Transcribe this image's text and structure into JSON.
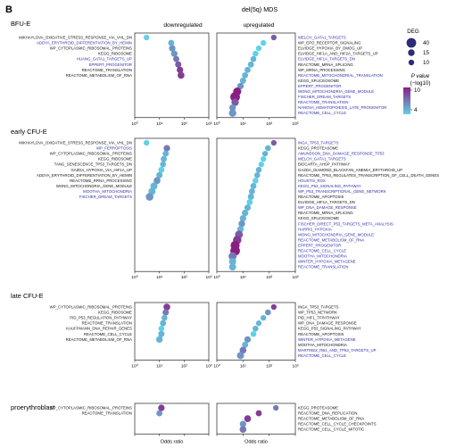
{
  "panel_letter": "B",
  "figure_title": "del(5q) MDS",
  "column_headers": {
    "down": "downregulated",
    "up": "upregulated"
  },
  "xlabel": "Odds ratio",
  "legend": {
    "size_title": "DEG",
    "size_values": [
      40,
      15,
      10
    ],
    "color_title": "P value",
    "color_subtitle": "(−log10)",
    "color_ticks": [
      10,
      4
    ],
    "color_low": "#5fd2e6",
    "color_high": "#8a1f83"
  },
  "colors": {
    "black_label": "#111111",
    "blue_label": "#2e2ea8"
  },
  "chart_data": {
    "type": "scatter",
    "xscale": "log",
    "xlim": [
      1,
      1000
    ],
    "xticks": [
      "10⁰",
      "10¹",
      "10²",
      "10³"
    ],
    "groups": [
      {
        "name": "BFU-E",
        "down": {
          "terms": [
            {
              "label": "MIKHAYLOVA_OXIDATIVE_STRESS_RESPONSE_VIA_VHL_DN",
              "blue": false,
              "or": 3,
              "deg": 10,
              "p": 4
            },
            {
              "label": "ADDYA_ERYTHROID_DIFFERENTIATION_BY_HEMIN",
              "blue": true,
              "or": 30,
              "deg": 12,
              "p": 5
            },
            {
              "label": "WP_CYTOPLASMIC_RIBOSOMAL_PROTEINS",
              "blue": false,
              "or": 33,
              "deg": 14,
              "p": 6
            },
            {
              "label": "KEGG_RIBOSOME",
              "blue": false,
              "or": 40,
              "deg": 14,
              "p": 6
            },
            {
              "label": "HUANG_GATA1_TARGETS_UP",
              "blue": true,
              "or": 48,
              "deg": 12,
              "p": 7
            },
            {
              "label": "EPPERT_PROGENITOR",
              "blue": true,
              "or": 58,
              "deg": 13,
              "p": 8
            },
            {
              "label": "REACTOME_TRANSLATION",
              "blue": false,
              "or": 68,
              "deg": 14,
              "p": 9
            },
            {
              "label": "REACTOME_METABOLISM_OF_RNA",
              "blue": false,
              "or": 75,
              "deg": 16,
              "p": 9
            }
          ]
        },
        "up": {
          "terms": [
            {
              "label": "WELCH_GATA1_TARGETS",
              "blue": true,
              "or": 150,
              "deg": 10,
              "p": 8
            },
            {
              "label": "WP_EPO_RECEPTOR_SIGNALING",
              "blue": false,
              "or": 60,
              "deg": 10,
              "p": 4
            },
            {
              "label": "ELVIDGE_HYPOXIA_BY_DMOG_UP",
              "blue": false,
              "or": 40,
              "deg": 10,
              "p": 4
            },
            {
              "label": "ELVIDGE_HIF1A_AND_HIF2A_TARGETS_UP",
              "blue": false,
              "or": 30,
              "deg": 11,
              "p": 4
            },
            {
              "label": "ELVIDGE_HIF1A_TARGETS_DN",
              "blue": true,
              "or": 25,
              "deg": 11,
              "p": 5
            },
            {
              "label": "REACTOME_MRNA_SPLICING",
              "blue": false,
              "or": 20,
              "deg": 12,
              "p": 5
            },
            {
              "label": "WP_MRNA_PROCESSING",
              "blue": false,
              "or": 15,
              "deg": 12,
              "p": 5
            },
            {
              "label": "REACTOME_MITOCHONDRIAL_TRANSLATION",
              "blue": true,
              "or": 12,
              "deg": 12,
              "p": 5
            },
            {
              "label": "KEGG_SPLICEOSOME",
              "blue": false,
              "or": 10,
              "deg": 13,
              "p": 5
            },
            {
              "label": "EPPERT_PROGENITOR",
              "blue": true,
              "or": 8,
              "deg": 14,
              "p": 6
            },
            {
              "label": "WONG_MITOCHONDRIA_GENE_MODULE",
              "blue": true,
              "or": 6,
              "deg": 25,
              "p": 10
            },
            {
              "label": "FISCHER_DREAM_TARGETS",
              "blue": true,
              "or": 5,
              "deg": 40,
              "p": 10
            },
            {
              "label": "REACTOME_TRANSLATION",
              "blue": true,
              "or": 5,
              "deg": 20,
              "p": 8
            },
            {
              "label": "NANOVA_HEMATOPOIESIS_LATE_PROGENITOR",
              "blue": true,
              "or": 4,
              "deg": 15,
              "p": 6
            },
            {
              "label": "REACTOME_CELL_CYCLE",
              "blue": true,
              "or": 4,
              "deg": 20,
              "p": 6
            }
          ]
        }
      },
      {
        "name": "early CFU-E",
        "down": {
          "terms": [
            {
              "label": "MIKHAYLOVA_OXIDATIVE_STRESS_RESPONSE_VIA_VHL_DN",
              "blue": false,
              "or": 3,
              "deg": 10,
              "p": 4
            },
            {
              "label": "WP_FERROPTOSIS",
              "blue": true,
              "or": 20,
              "deg": 14,
              "p": 7
            },
            {
              "label": "WP_CYTOPLASMIC_RIBOSOMAL_PROTEINS",
              "blue": false,
              "or": 18,
              "deg": 12,
              "p": 5
            },
            {
              "label": "KEGG_RIBOSOME",
              "blue": false,
              "or": 15,
              "deg": 12,
              "p": 5
            },
            {
              "label": "TANG_SENESCENCE_TP53_TARGETS_DN",
              "blue": false,
              "or": 14,
              "deg": 11,
              "p": 5
            },
            {
              "label": "GAZDA_HYPOXIA_VIA_HIF1A_UP",
              "blue": false,
              "or": 12,
              "deg": 12,
              "p": 4
            },
            {
              "label": "ADDYA_ERYTHROID_DIFFERENTIATION_BY_HEMIN",
              "blue": false,
              "or": 10,
              "deg": 13,
              "p": 5
            },
            {
              "label": "REACTOME_RRNA_PROCESSING",
              "blue": false,
              "or": 8,
              "deg": 16,
              "p": 6
            },
            {
              "label": "WONG_MITOCHONDRIA_GENE_MODULE",
              "blue": false,
              "or": 6,
              "deg": 18,
              "p": 5
            },
            {
              "label": "MOOTHA_MITOCHONDRIA",
              "blue": true,
              "or": 5,
              "deg": 18,
              "p": 5
            },
            {
              "label": "FISCHER_DREAM_TARGETS",
              "blue": true,
              "or": 4,
              "deg": 22,
              "p": 6
            }
          ]
        },
        "up": {
          "terms": [
            {
              "label": "INGA_TP53_TARGETS",
              "blue": true,
              "or": 150,
              "deg": 10,
              "p": 8
            },
            {
              "label": "KEGG_PROTEASOME",
              "blue": false,
              "or": 90,
              "deg": 11,
              "p": 5
            },
            {
              "label": "AMUNDSON_DNA_DAMAGE_RESPONSE_TP53",
              "blue": true,
              "or": 70,
              "deg": 10,
              "p": 5
            },
            {
              "label": "WELCH_GATA1_TARGETS",
              "blue": true,
              "or": 60,
              "deg": 10,
              "p": 4
            },
            {
              "label": "BIOCARTA_AHSP_PATHWAY",
              "blue": false,
              "or": 50,
              "deg": 10,
              "p": 4
            },
            {
              "label": "GAZDA_DIAMOND_BLACKFAN_ANEMIA_ERYTHROID_UP",
              "blue": false,
              "or": 40,
              "deg": 11,
              "p": 5
            },
            {
              "label": "REACTOME_TP53_REGULATES_TRANSCRIPTION_OF_CELL_DEATH_GENES",
              "blue": false,
              "or": 35,
              "deg": 11,
              "p": 5
            },
            {
              "label": "HOUSTIS_ROS",
              "blue": true,
              "or": 30,
              "deg": 11,
              "p": 4
            },
            {
              "label": "KEGG_P53_SIGNALING_PATHWAY",
              "blue": true,
              "or": 25,
              "deg": 12,
              "p": 5
            },
            {
              "label": "WP_P53_TRANSCRIPTIONAL_GENE_NETWORK",
              "blue": true,
              "or": 22,
              "deg": 12,
              "p": 5
            },
            {
              "label": "REACTOME_APOPTOSIS",
              "blue": false,
              "or": 20,
              "deg": 13,
              "p": 5
            },
            {
              "label": "ELVIDGE_HIF1A_TARGETS_DN",
              "blue": false,
              "or": 18,
              "deg": 12,
              "p": 4
            },
            {
              "label": "WP_DNA_DAMAGE_RESPONSE",
              "blue": true,
              "or": 15,
              "deg": 13,
              "p": 5
            },
            {
              "label": "REACTOME_MRNA_SPLICING",
              "blue": false,
              "or": 12,
              "deg": 14,
              "p": 5
            },
            {
              "label": "KEGG_SPLICEOSOME",
              "blue": false,
              "or": 10,
              "deg": 14,
              "p": 5
            },
            {
              "label": "FISCHER_DIRECT_P53_TARGETS_META_ANALYSIS",
              "blue": true,
              "or": 9,
              "deg": 15,
              "p": 6
            },
            {
              "label": "HARRIS_HYPOXIA",
              "blue": true,
              "or": 8,
              "deg": 14,
              "p": 5
            },
            {
              "label": "WONG_MITOCHONDRIA_GENE_MODULE",
              "blue": true,
              "or": 7,
              "deg": 24,
              "p": 8
            },
            {
              "label": "REACTOME_METABOLISM_OF_RNA",
              "blue": true,
              "or": 6,
              "deg": 28,
              "p": 9
            },
            {
              "label": "EPPERT_PROGENITOR",
              "blue": true,
              "or": 5,
              "deg": 34,
              "p": 10
            },
            {
              "label": "REACTOME_CELL_CYCLE",
              "blue": true,
              "or": 5,
              "deg": 40,
              "p": 10
            },
            {
              "label": "MOOTHA_MITOCHONDRIA",
              "blue": true,
              "or": 4,
              "deg": 24,
              "p": 7
            },
            {
              "label": "WINTER_HYPOXIA_METAGENE",
              "blue": true,
              "or": 4,
              "deg": 18,
              "p": 5
            },
            {
              "label": "REACTOME_TRANSLATION",
              "blue": true,
              "or": 4,
              "deg": 18,
              "p": 5
            }
          ]
        }
      },
      {
        "name": "late CFU-E",
        "down": {
          "terms": [
            {
              "label": "WP_CYTOPLASMIC_RIBOSOMAL_PROTEINS",
              "blue": false,
              "or": 20,
              "deg": 16,
              "p": 9
            },
            {
              "label": "KEGG_RIBOSOME",
              "blue": false,
              "or": 18,
              "deg": 13,
              "p": 7
            },
            {
              "label": "PID_P53_REGULATION_PATHWAY",
              "blue": false,
              "or": 16,
              "deg": 11,
              "p": 5
            },
            {
              "label": "REACTOME_TRANSLATION",
              "blue": false,
              "or": 14,
              "deg": 12,
              "p": 5
            },
            {
              "label": "KAUFFMANN_DNA_REPAIR_GENES",
              "blue": false,
              "or": 12,
              "deg": 11,
              "p": 4
            },
            {
              "label": "REACTOME_CELL_CYCLE",
              "blue": false,
              "or": 12,
              "deg": 13,
              "p": 5
            },
            {
              "label": "REACTOME_METABOLISM_OF_RNA",
              "blue": false,
              "or": 10,
              "deg": 15,
              "p": 5
            }
          ]
        },
        "up": {
          "terms": [
            {
              "label": "INGA_TP53_TARGETS",
              "blue": false,
              "or": 150,
              "deg": 10,
              "p": 9
            },
            {
              "label": "WP_TP53_NETWORK",
              "blue": false,
              "or": 90,
              "deg": 11,
              "p": 6
            },
            {
              "label": "PID_HIF1_TFPATHWAY",
              "blue": false,
              "or": 60,
              "deg": 10,
              "p": 5
            },
            {
              "label": "WP_DNA_DAMAGE_RESPONSE",
              "blue": false,
              "or": 40,
              "deg": 10,
              "p": 5
            },
            {
              "label": "KEGG_P53_SIGNALING_PATHWAY",
              "blue": false,
              "or": 30,
              "deg": 11,
              "p": 5
            },
            {
              "label": "REACTOME_APOPTOSIS",
              "blue": false,
              "or": 25,
              "deg": 11,
              "p": 4
            },
            {
              "label": "WINTER_HYPOXIA_METAGENE",
              "blue": true,
              "or": 15,
              "deg": 14,
              "p": 6
            },
            {
              "label": "MOOTHA_MITOCHONDRIA",
              "blue": false,
              "or": 12,
              "deg": 13,
              "p": 5
            },
            {
              "label": "MARTINEZ_RB1_AND_TP53_TARGETS_UP",
              "blue": true,
              "or": 10,
              "deg": 16,
              "p": 7
            },
            {
              "label": "REACTOME_CELL_CYCLE",
              "blue": true,
              "or": 8,
              "deg": 18,
              "p": 6
            }
          ]
        }
      },
      {
        "name": "proerythroblast",
        "down": {
          "terms": [
            {
              "label": "WP_CYTOPLASMIC_RIBOSOMAL_PROTEINS",
              "blue": false,
              "or": 12,
              "deg": 14,
              "p": 9
            },
            {
              "label": "REACTOME_TRANSLATION",
              "blue": false,
              "or": 10,
              "deg": 12,
              "p": 6
            }
          ]
        },
        "up": {
          "terms": [
            {
              "label": "KEGG_PROTEASOME",
              "blue": false,
              "or": 180,
              "deg": 10,
              "p": 7
            },
            {
              "label": "REACTOME_DNA_REPLICATION",
              "blue": false,
              "or": 40,
              "deg": 12,
              "p": 9
            },
            {
              "label": "REACTOME_METABOLISM_OF_RNA",
              "blue": false,
              "or": 15,
              "deg": 16,
              "p": 9
            },
            {
              "label": "REACTOME_CELL_CYCLE_CHECKPOINTS",
              "blue": false,
              "or": 10,
              "deg": 14,
              "p": 6
            },
            {
              "label": "REACTOME_CELL_CYCLE_MITOTIC",
              "blue": false,
              "or": 10,
              "deg": 16,
              "p": 7
            }
          ]
        }
      }
    ]
  }
}
